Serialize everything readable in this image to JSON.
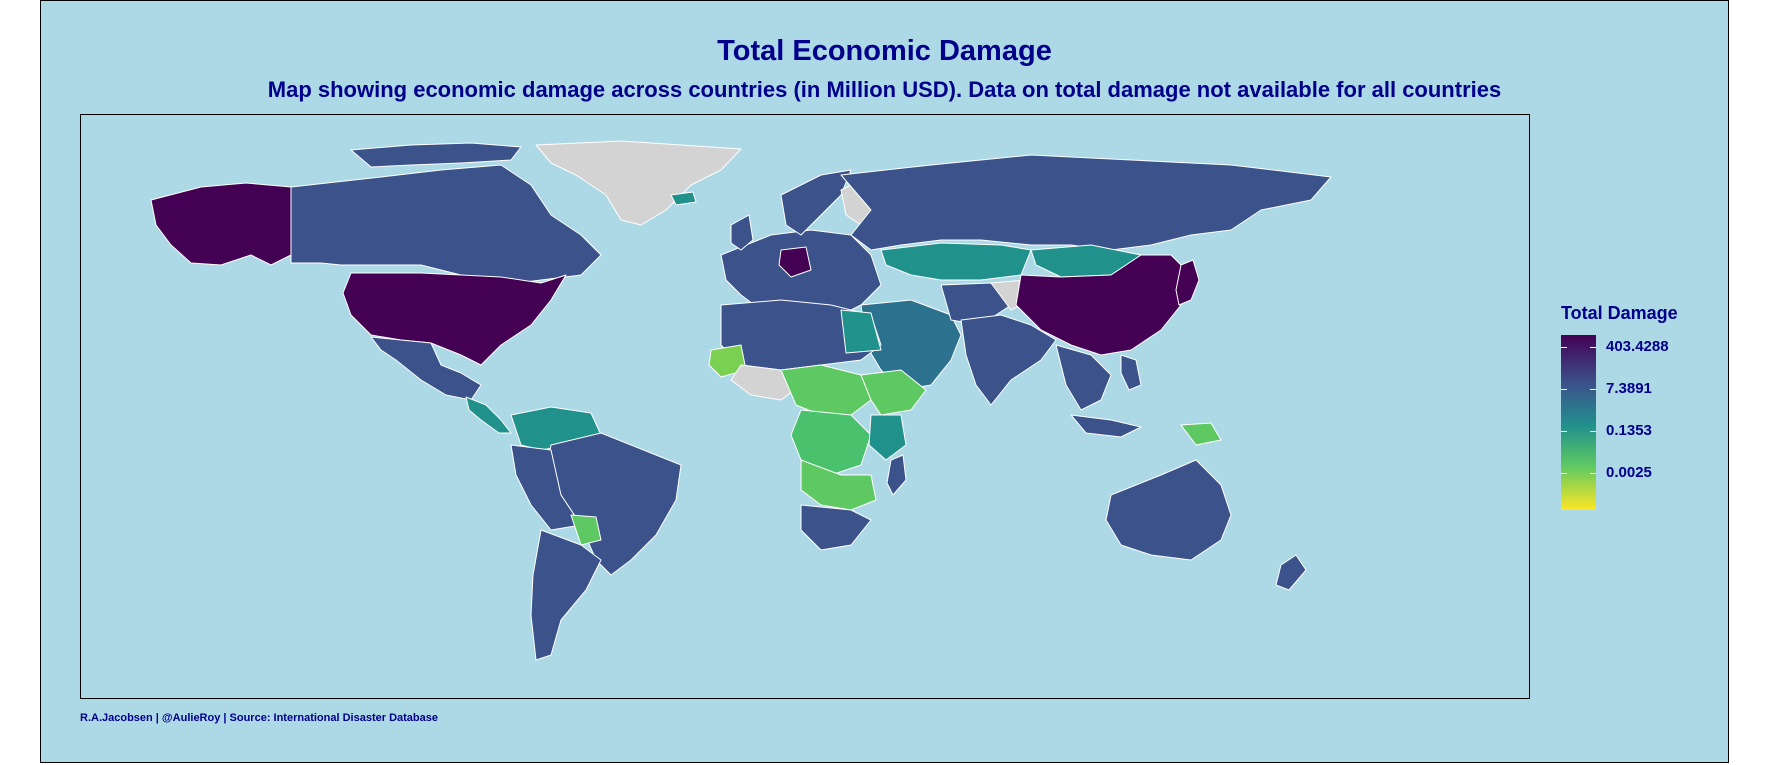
{
  "chart": {
    "title": "Total Economic Damage",
    "subtitle": "Map showing economic damage across countries (in Million USD). Data on total damage not available for all countries",
    "caption": "R.A.Jacobsen | @AulieRoy | Source: International Disaster Database"
  },
  "legend": {
    "title": "Total Damage",
    "ticks": [
      "403.4288",
      "7.3891",
      "0.1353",
      "0.0025"
    ]
  },
  "colors": {
    "background": "#add8e6",
    "text": "#00008b",
    "no_data": "#d3d3d3",
    "scale": [
      "#440154",
      "#3b528b",
      "#21918c",
      "#5ec962",
      "#fde725"
    ]
  },
  "chart_data": {
    "type": "choropleth",
    "color_scale": "viridis (reversed), log scale",
    "legend_breaks": [
      403.4288,
      7.3891,
      0.1353,
      0.0025
    ],
    "units": "Million USD",
    "regions": [
      {
        "name": "Alaska (USA)",
        "level": "highest"
      },
      {
        "name": "United States",
        "level": "highest"
      },
      {
        "name": "China",
        "level": "highest"
      },
      {
        "name": "Japan",
        "level": "highest"
      },
      {
        "name": "Germany",
        "level": "highest"
      },
      {
        "name": "Canada",
        "level": "high"
      },
      {
        "name": "Mexico",
        "level": "high"
      },
      {
        "name": "India",
        "level": "high"
      },
      {
        "name": "Australia",
        "level": "high"
      },
      {
        "name": "Russia",
        "level": "mid-high"
      },
      {
        "name": "Brazil",
        "level": "mid-high"
      },
      {
        "name": "Argentina",
        "level": "high"
      },
      {
        "name": "Kazakhstan",
        "level": "mid"
      },
      {
        "name": "Mongolia",
        "level": "mid"
      },
      {
        "name": "Greenland",
        "level": "no data"
      },
      {
        "name": "Mauritania",
        "level": "low"
      },
      {
        "name": "DR Congo",
        "level": "mid-low"
      },
      {
        "name": "South Africa",
        "level": "mid-high"
      }
    ]
  }
}
